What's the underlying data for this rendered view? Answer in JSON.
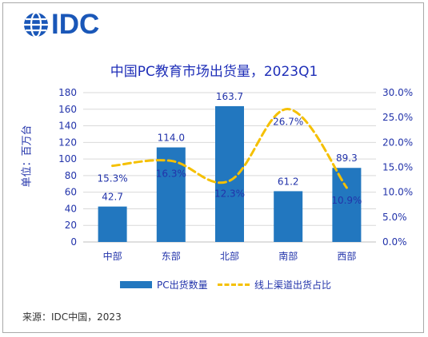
{
  "logo": {
    "text": "IDC"
  },
  "chart_data": {
    "type": "bar",
    "title": "中国PC教育市场出货量，2023Q1",
    "ylabel": "单位：百万台",
    "categories": [
      "中部",
      "东部",
      "北部",
      "南部",
      "西部"
    ],
    "series": [
      {
        "name": "PC出货数量",
        "type": "bar",
        "axis": "left",
        "color": "#2277bf",
        "values": [
          42.7,
          114.0,
          163.7,
          61.2,
          89.3
        ],
        "labels": [
          "42.7",
          "114.0",
          "163.7",
          "61.2",
          "89.3"
        ]
      },
      {
        "name": "线上渠道出货占比",
        "type": "line",
        "axis": "right",
        "color": "#f5c000",
        "values": [
          15.3,
          16.3,
          12.3,
          26.7,
          10.9
        ],
        "labels": [
          "15.3%",
          "16.3%",
          "12.3%",
          "26.7%",
          "10.9%"
        ]
      }
    ],
    "ylim": [
      0,
      180
    ],
    "yticks": [
      "0",
      "20",
      "40",
      "60",
      "80",
      "100",
      "120",
      "140",
      "160",
      "180"
    ],
    "y2lim": [
      0,
      30
    ],
    "y2ticks": [
      "0.0%",
      "5.0%",
      "10.0%",
      "15.0%",
      "20.0%",
      "25.0%",
      "30.0%"
    ],
    "grid": true,
    "legend_position": "bottom"
  },
  "source": "来源：IDC中国，2023"
}
